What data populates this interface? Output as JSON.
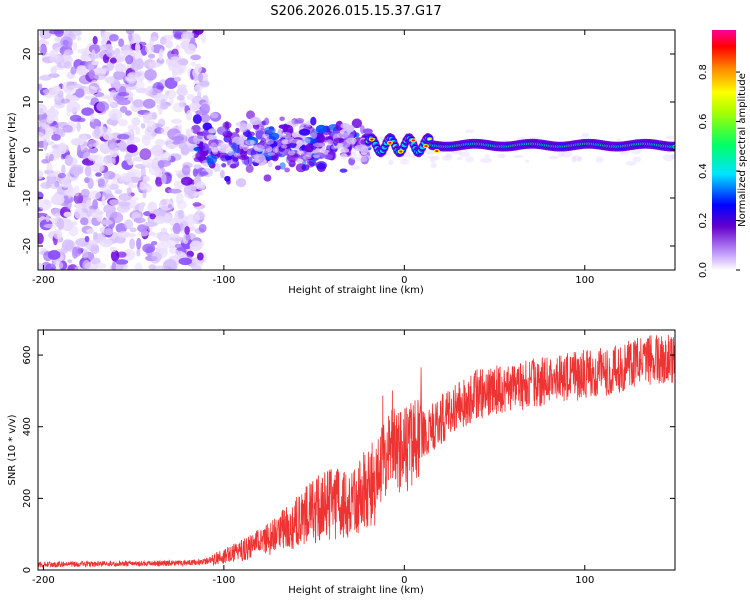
{
  "chart_data": [
    {
      "type": "heatmap",
      "title": "S206.2026.015.15.37.G17",
      "xlabel": "Height of straight line (km)",
      "ylabel": "Frequency (Hz)",
      "xlim": [
        -203,
        150
      ],
      "ylim": [
        -25,
        25
      ],
      "xticks": [
        -200,
        -100,
        0,
        100
      ],
      "yticks": [
        -20,
        -10,
        0,
        10,
        20
      ],
      "colorbar": {
        "label": "Normalized spectral amplitude",
        "range": [
          0.0,
          0.97
        ],
        "ticks": [
          0.0,
          0.2,
          0.4,
          0.6,
          0.8
        ]
      },
      "description_ridge": {
        "x_start": -20,
        "x_end": 150,
        "frequency": 1.0
      }
    },
    {
      "type": "line",
      "xlabel": "Height of straight line (km)",
      "ylabel": "SNR (10 * v/v)",
      "xlim": [
        -203,
        150
      ],
      "ylim": [
        0,
        670
      ],
      "xticks": [
        -200,
        -100,
        0,
        100
      ],
      "yticks": [
        0,
        200,
        400,
        600
      ],
      "color": "#ee3333",
      "series": [
        {
          "name": "SNR",
          "x": [
            -203,
            -180,
            -160,
            -140,
            -120,
            -110,
            -100,
            -90,
            -80,
            -70,
            -60,
            -50,
            -40,
            -35,
            -30,
            -25,
            -20,
            -15,
            -10,
            -5,
            0,
            10,
            20,
            30,
            40,
            50,
            60,
            70,
            80,
            90,
            100,
            110,
            120,
            130,
            140,
            150
          ],
          "y": [
            15,
            16,
            17,
            18,
            20,
            24,
            38,
            55,
            75,
            100,
            135,
            165,
            190,
            180,
            175,
            200,
            225,
            250,
            320,
            340,
            330,
            375,
            420,
            455,
            490,
            500,
            510,
            520,
            530,
            540,
            545,
            555,
            565,
            580,
            590,
            585
          ]
        }
      ]
    }
  ]
}
